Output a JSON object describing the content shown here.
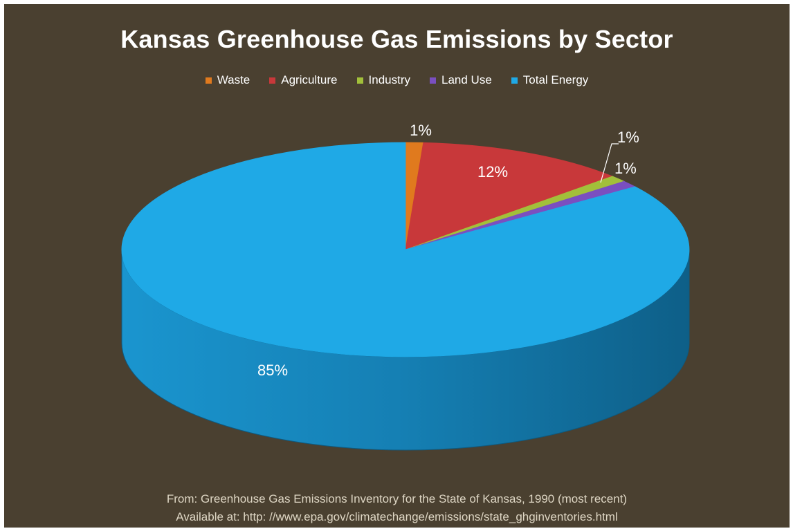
{
  "chart_data": {
    "type": "pie",
    "style": "3d",
    "title": "Kansas Greenhouse Gas Emissions by Sector",
    "legend_position": "top",
    "slices": [
      {
        "name": "Waste",
        "value": 1,
        "label": "1%",
        "color": "#e07a1e"
      },
      {
        "name": "Agriculture",
        "value": 12,
        "label": "12%",
        "color": "#c8383a"
      },
      {
        "name": "Industry",
        "value": 1,
        "label": "1%",
        "color": "#a2c03a"
      },
      {
        "name": "Land Use",
        "value": 1,
        "label": "1%",
        "color": "#7a4fc0"
      },
      {
        "name": "Total Energy",
        "value": 85,
        "label": "85%",
        "color": "#1fa9e6"
      }
    ]
  },
  "footer": {
    "line1": "From:  Greenhouse Gas Emissions Inventory for the State of Kansas, 1990 (most recent)",
    "line2": "Available at:  http: //www.epa.gov/climatechange/emissions/state_ghginventories.html"
  },
  "colors": {
    "background": "#4a4030",
    "text": "#ffffff",
    "footer_text": "#ded6c4"
  }
}
